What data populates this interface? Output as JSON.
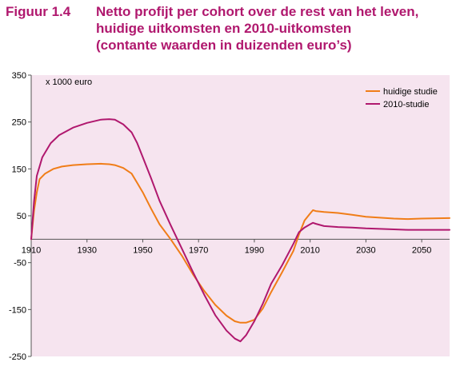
{
  "figure": {
    "number": "Figuur 1.4",
    "title_lines": [
      "Netto profijt per cohort over de rest van het leven,",
      "huidige uitkomsten en 2010-uitkomsten",
      "(contante waarden in duizenden euro’s)"
    ]
  },
  "colors": {
    "title": "#b0186e",
    "plot_background": "#f6e4ef",
    "axis": "#555555"
  },
  "chart_data": {
    "type": "line",
    "unit_label": "x 1000 euro",
    "xlim": [
      1910,
      2060
    ],
    "ylim": [
      -250,
      350
    ],
    "xticks": [
      1910,
      1930,
      1950,
      1970,
      1990,
      2010,
      2030,
      2050
    ],
    "yticks": [
      350,
      250,
      150,
      50,
      -50,
      -150,
      -250
    ],
    "legend_position": "top-right",
    "grid": false,
    "series": [
      {
        "name": "huidige studie",
        "color": "#f07d18",
        "x": [
          1910,
          1911,
          1912,
          1913,
          1915,
          1918,
          1921,
          1925,
          1930,
          1935,
          1938,
          1940,
          1943,
          1946,
          1948,
          1950,
          1953,
          1956,
          1960,
          1964,
          1968,
          1972,
          1976,
          1980,
          1983,
          1985,
          1987,
          1990,
          1993,
          1996,
          2000,
          2004,
          2006,
          2008,
          2010,
          2011,
          2012,
          2015,
          2020,
          2025,
          2030,
          2040,
          2045,
          2050,
          2060
        ],
        "y": [
          0,
          60,
          100,
          128,
          140,
          150,
          155,
          158,
          160,
          161,
          160,
          158,
          152,
          140,
          120,
          100,
          65,
          32,
          0,
          -35,
          -75,
          -110,
          -140,
          -163,
          -175,
          -178,
          -178,
          -172,
          -148,
          -113,
          -70,
          -25,
          10,
          40,
          55,
          62,
          60,
          58,
          56,
          52,
          48,
          44,
          43,
          44,
          45
        ]
      },
      {
        "name": "2010-studie",
        "color": "#b0186e",
        "x": [
          1910,
          1911,
          1912,
          1914,
          1917,
          1920,
          1925,
          1930,
          1935,
          1938,
          1940,
          1943,
          1946,
          1948,
          1950,
          1953,
          1956,
          1960,
          1964,
          1968,
          1972,
          1976,
          1980,
          1983,
          1985,
          1987,
          1990,
          1993,
          1996,
          2000,
          2004,
          2006,
          2008,
          2010,
          2011,
          2012,
          2015,
          2020,
          2025,
          2030,
          2040,
          2045,
          2050,
          2060
        ],
        "y": [
          0,
          80,
          135,
          175,
          205,
          222,
          238,
          248,
          255,
          256,
          255,
          245,
          228,
          205,
          175,
          130,
          82,
          30,
          -20,
          -70,
          -118,
          -162,
          -195,
          -212,
          -218,
          -205,
          -175,
          -138,
          -95,
          -55,
          -10,
          15,
          25,
          32,
          35,
          33,
          28,
          26,
          25,
          23,
          21,
          20,
          20,
          20
        ]
      }
    ]
  }
}
